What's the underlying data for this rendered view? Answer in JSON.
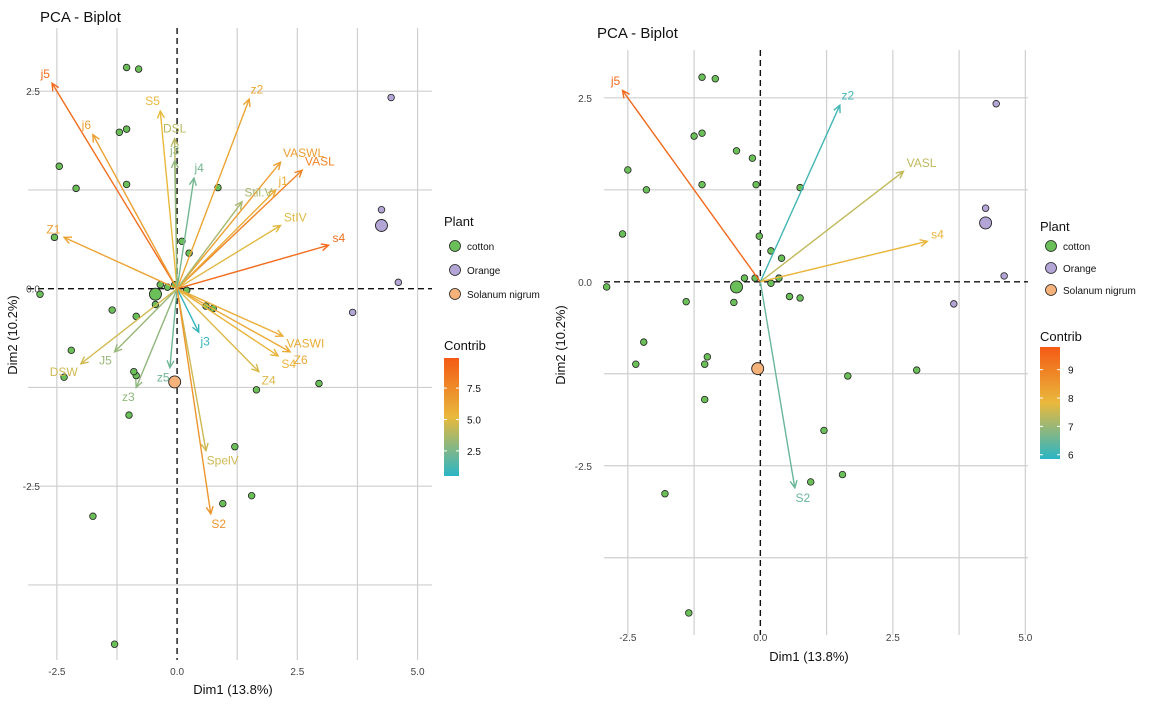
{
  "colors": {
    "cotton": "#6bbf59",
    "orange": "#b3a6d6",
    "solanum": "#f5b27a",
    "grid": "#cfcfcf"
  },
  "chart_data": [
    {
      "type": "scatter",
      "title": "PCA - Biplot",
      "xlabel": "Dim1 (13.8%)",
      "ylabel": "Dim2 (10.2%)",
      "xlim": [
        -3.1,
        5.3
      ],
      "ylim": [
        -4.7,
        3.3
      ],
      "xticks": [
        -2.5,
        0.0,
        2.5,
        5.0
      ],
      "xtick_labels": [
        "-2.5",
        "0.0",
        "2.5",
        "5.0"
      ],
      "yticks": [
        2.5,
        0.0,
        -2.5
      ],
      "ytick_labels": [
        "2.5",
        "0.0",
        "-2.5"
      ],
      "legend": {
        "plant_title": "Plant",
        "plant_items": [
          "cotton",
          "Orange",
          "Solanum nigrum"
        ],
        "contrib_title": "Contrib",
        "contrib_ticks": [
          2.5,
          5.0,
          7.5
        ],
        "contrib_tick_labels": [
          "2.5",
          "5.0",
          "7.5"
        ],
        "contrib_range": [
          0.5,
          9.9
        ]
      },
      "points": [
        {
          "x": -1.05,
          "y": 2.8,
          "plant": "cotton"
        },
        {
          "x": -0.8,
          "y": 2.78,
          "plant": "cotton"
        },
        {
          "x": -1.2,
          "y": 1.98,
          "plant": "cotton"
        },
        {
          "x": -1.05,
          "y": 2.02,
          "plant": "cotton"
        },
        {
          "x": -2.45,
          "y": 1.55,
          "plant": "cotton"
        },
        {
          "x": -2.1,
          "y": 1.27,
          "plant": "cotton"
        },
        {
          "x": -1.05,
          "y": 1.32,
          "plant": "cotton"
        },
        {
          "x": -2.55,
          "y": 0.65,
          "plant": "cotton"
        },
        {
          "x": 0.85,
          "y": 1.28,
          "plant": "cotton"
        },
        {
          "x": 0.25,
          "y": 0.45,
          "plant": "cotton"
        },
        {
          "x": 0.1,
          "y": 0.6,
          "plant": "cotton"
        },
        {
          "x": -2.85,
          "y": -0.07,
          "plant": "cotton"
        },
        {
          "x": -0.35,
          "y": 0.05,
          "plant": "cotton"
        },
        {
          "x": -0.2,
          "y": 0.02,
          "plant": "cotton"
        },
        {
          "x": -0.05,
          "y": 0.05,
          "plant": "cotton"
        },
        {
          "x": 0.2,
          "y": -0.02,
          "plant": "cotton"
        },
        {
          "x": 0.6,
          "y": -0.22,
          "plant": "cotton"
        },
        {
          "x": 0.75,
          "y": -0.25,
          "plant": "cotton"
        },
        {
          "x": -0.45,
          "y": -0.2,
          "plant": "cotton"
        },
        {
          "x": -1.35,
          "y": -0.27,
          "plant": "cotton"
        },
        {
          "x": -0.85,
          "y": -0.35,
          "plant": "cotton"
        },
        {
          "x": -2.2,
          "y": -0.78,
          "plant": "cotton"
        },
        {
          "x": -2.35,
          "y": -1.12,
          "plant": "cotton"
        },
        {
          "x": -0.85,
          "y": -1.1,
          "plant": "cotton"
        },
        {
          "x": -0.9,
          "y": -1.05,
          "plant": "cotton"
        },
        {
          "x": -1.0,
          "y": -1.6,
          "plant": "cotton"
        },
        {
          "x": 1.65,
          "y": -1.28,
          "plant": "cotton"
        },
        {
          "x": 2.95,
          "y": -1.2,
          "plant": "cotton"
        },
        {
          "x": 1.2,
          "y": -2.0,
          "plant": "cotton"
        },
        {
          "x": 1.55,
          "y": -2.62,
          "plant": "cotton"
        },
        {
          "x": 0.95,
          "y": -2.72,
          "plant": "cotton"
        },
        {
          "x": -1.75,
          "y": -2.88,
          "plant": "cotton"
        },
        {
          "x": -1.3,
          "y": -4.5,
          "plant": "cotton"
        },
        {
          "x": 4.45,
          "y": 2.42,
          "plant": "Orange"
        },
        {
          "x": 4.25,
          "y": 1.0,
          "plant": "Orange"
        },
        {
          "x": 4.6,
          "y": 0.08,
          "plant": "Orange"
        },
        {
          "x": 3.65,
          "y": -0.3,
          "plant": "Orange"
        }
      ],
      "centroids": [
        {
          "x": -0.45,
          "y": -0.07,
          "plant": "cotton"
        },
        {
          "x": 4.25,
          "y": 0.8,
          "plant": "Orange"
        },
        {
          "x": -0.05,
          "y": -1.18,
          "plant": "Solanum nigrum"
        }
      ],
      "arrows": [
        {
          "label": "j5",
          "x": -2.6,
          "y": 2.6,
          "contrib": 9.0
        },
        {
          "label": "j6",
          "x": -1.75,
          "y": 1.95,
          "contrib": 6.5
        },
        {
          "label": "S5",
          "x": -0.35,
          "y": 2.25,
          "contrib": 5.2
        },
        {
          "label": "DSL",
          "x": -0.05,
          "y": 1.9,
          "contrib": 4.0
        },
        {
          "label": "j3",
          "x": -0.05,
          "y": 1.62,
          "contrib": 3.0
        },
        {
          "label": "j4",
          "x": 0.35,
          "y": 1.4,
          "contrib": 2.3
        },
        {
          "label": "z2",
          "x": 1.5,
          "y": 2.4,
          "contrib": 6.2
        },
        {
          "label": "VASWL",
          "x": 2.15,
          "y": 1.6,
          "contrib": 6.5
        },
        {
          "label": "VASL",
          "x": 2.6,
          "y": 1.5,
          "contrib": 7.8
        },
        {
          "label": "j1",
          "x": 2.05,
          "y": 1.25,
          "contrib": 5.8
        },
        {
          "label": "Stil.V",
          "x": 1.35,
          "y": 1.1,
          "contrib": 3.6
        },
        {
          "label": "StIV",
          "x": 2.15,
          "y": 0.8,
          "contrib": 5.0
        },
        {
          "label": "s4",
          "x": 3.15,
          "y": 0.55,
          "contrib": 9.0
        },
        {
          "label": "Z1",
          "x": -2.35,
          "y": 0.65,
          "contrib": 6.3
        },
        {
          "label": "VASWI",
          "x": 2.2,
          "y": -0.6,
          "contrib": 5.8
        },
        {
          "label": "Z6",
          "x": 2.35,
          "y": -0.8,
          "contrib": 6.0
        },
        {
          "label": "S4",
          "x": 2.1,
          "y": -0.85,
          "contrib": 5.5
        },
        {
          "label": "Z4",
          "x": 1.7,
          "y": -1.05,
          "contrib": 4.8
        },
        {
          "label": "J5",
          "x": -1.3,
          "y": -0.8,
          "contrib": 3.2
        },
        {
          "label": "DSW",
          "x": -2.0,
          "y": -0.95,
          "contrib": 4.6
        },
        {
          "label": "z3",
          "x": -0.85,
          "y": -1.25,
          "contrib": 3.0
        },
        {
          "label": "z5",
          "x": -0.15,
          "y": -1.0,
          "contrib": 2.2
        },
        {
          "label": "j3",
          "x": 0.45,
          "y": -0.55,
          "contrib": 0.8
        },
        {
          "label": "SpelV",
          "x": 0.6,
          "y": -2.05,
          "contrib": 4.5
        },
        {
          "label": "S2",
          "x": 0.7,
          "y": -2.85,
          "contrib": 7.0
        }
      ]
    },
    {
      "type": "scatter",
      "title": "PCA - Biplot",
      "xlabel": "Dim1 (13.8%)",
      "ylabel": "Dim2 (10.2%)",
      "xlim": [
        -2.95,
        5.05
      ],
      "ylim": [
        -4.8,
        3.15
      ],
      "xticks": [
        -2.5,
        0.0,
        2.5,
        5.0
      ],
      "xtick_labels": [
        "-2.5",
        "0.0",
        "2.5",
        "5.0"
      ],
      "yticks": [
        2.5,
        0.0,
        -2.5
      ],
      "ytick_labels": [
        "2.5",
        "0.0",
        "-2.5"
      ],
      "legend": {
        "plant_title": "Plant",
        "plant_items": [
          "cotton",
          "Orange",
          "Solanum nigrum"
        ],
        "contrib_title": "Contrib",
        "contrib_ticks": [
          6,
          7,
          8,
          9
        ],
        "contrib_tick_labels": [
          "6",
          "7",
          "8",
          "9"
        ],
        "contrib_range": [
          5.85,
          9.8
        ]
      },
      "points": [
        {
          "x": -1.1,
          "y": 2.78,
          "plant": "cotton"
        },
        {
          "x": -0.85,
          "y": 2.76,
          "plant": "cotton"
        },
        {
          "x": -1.25,
          "y": 1.98,
          "plant": "cotton"
        },
        {
          "x": -1.1,
          "y": 2.02,
          "plant": "cotton"
        },
        {
          "x": -0.45,
          "y": 1.78,
          "plant": "cotton"
        },
        {
          "x": -0.15,
          "y": 1.68,
          "plant": "cotton"
        },
        {
          "x": -2.5,
          "y": 1.52,
          "plant": "cotton"
        },
        {
          "x": -2.15,
          "y": 1.25,
          "plant": "cotton"
        },
        {
          "x": -1.1,
          "y": 1.32,
          "plant": "cotton"
        },
        {
          "x": -0.08,
          "y": 1.32,
          "plant": "cotton"
        },
        {
          "x": 0.75,
          "y": 1.28,
          "plant": "cotton"
        },
        {
          "x": -2.6,
          "y": 0.65,
          "plant": "cotton"
        },
        {
          "x": -0.02,
          "y": 0.62,
          "plant": "cotton"
        },
        {
          "x": 0.2,
          "y": 0.42,
          "plant": "cotton"
        },
        {
          "x": 0.4,
          "y": 0.32,
          "plant": "cotton"
        },
        {
          "x": -2.9,
          "y": -0.07,
          "plant": "cotton"
        },
        {
          "x": -0.3,
          "y": 0.05,
          "plant": "cotton"
        },
        {
          "x": -0.1,
          "y": 0.05,
          "plant": "cotton"
        },
        {
          "x": 0.2,
          "y": -0.02,
          "plant": "cotton"
        },
        {
          "x": 0.35,
          "y": 0.05,
          "plant": "cotton"
        },
        {
          "x": 0.55,
          "y": -0.2,
          "plant": "cotton"
        },
        {
          "x": 0.75,
          "y": -0.22,
          "plant": "cotton"
        },
        {
          "x": -0.5,
          "y": -0.28,
          "plant": "cotton"
        },
        {
          "x": -1.4,
          "y": -0.27,
          "plant": "cotton"
        },
        {
          "x": -2.2,
          "y": -0.82,
          "plant": "cotton"
        },
        {
          "x": -2.35,
          "y": -1.12,
          "plant": "cotton"
        },
        {
          "x": -1.0,
          "y": -1.02,
          "plant": "cotton"
        },
        {
          "x": -1.05,
          "y": -1.12,
          "plant": "cotton"
        },
        {
          "x": -1.05,
          "y": -1.6,
          "plant": "cotton"
        },
        {
          "x": 1.65,
          "y": -1.28,
          "plant": "cotton"
        },
        {
          "x": 2.95,
          "y": -1.2,
          "plant": "cotton"
        },
        {
          "x": 1.2,
          "y": -2.02,
          "plant": "cotton"
        },
        {
          "x": 1.55,
          "y": -2.62,
          "plant": "cotton"
        },
        {
          "x": 0.95,
          "y": -2.72,
          "plant": "cotton"
        },
        {
          "x": -1.8,
          "y": -2.88,
          "plant": "cotton"
        },
        {
          "x": -1.35,
          "y": -4.5,
          "plant": "cotton"
        },
        {
          "x": 4.45,
          "y": 2.42,
          "plant": "Orange"
        },
        {
          "x": 4.25,
          "y": 1.0,
          "plant": "Orange"
        },
        {
          "x": 4.6,
          "y": 0.08,
          "plant": "Orange"
        },
        {
          "x": 3.65,
          "y": -0.3,
          "plant": "Orange"
        }
      ],
      "centroids": [
        {
          "x": -0.45,
          "y": -0.07,
          "plant": "cotton"
        },
        {
          "x": 4.25,
          "y": 0.8,
          "plant": "Orange"
        },
        {
          "x": -0.05,
          "y": -1.18,
          "plant": "Solanum nigrum"
        }
      ],
      "arrows": [
        {
          "label": "j5",
          "x": -2.6,
          "y": 2.6,
          "contrib": 9.5
        },
        {
          "label": "z2",
          "x": 1.5,
          "y": 2.4,
          "contrib": 6.1
        },
        {
          "label": "VASL",
          "x": 2.7,
          "y": 1.5,
          "contrib": 7.4
        },
        {
          "label": "s4",
          "x": 3.15,
          "y": 0.55,
          "contrib": 7.9
        },
        {
          "label": "S2",
          "x": 0.65,
          "y": -2.8,
          "contrib": 6.5
        }
      ]
    }
  ]
}
